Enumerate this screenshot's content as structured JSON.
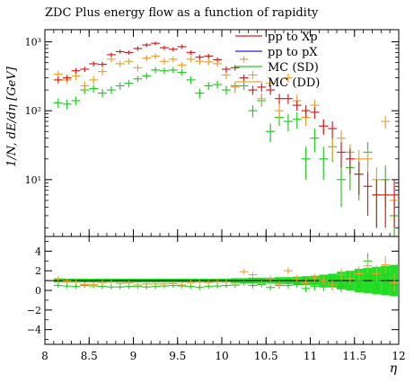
{
  "chart_data": {
    "type": "scatter",
    "title": "ZDC Plus energy flow as a function of rapidity",
    "xlabel": "η",
    "ylabel": "1/N, dE/dη [GeV]",
    "xlim": [
      8,
      12
    ],
    "main_panel": {
      "yscale": "log",
      "ylim": [
        1.5,
        1500
      ],
      "yticks": [
        {
          "value": 10,
          "label": "10¹"
        },
        {
          "value": 100,
          "label": "10²"
        },
        {
          "value": 1000,
          "label": "10³"
        }
      ]
    },
    "ratio_panel": {
      "yscale": "linear",
      "ylim": [
        -5.5,
        5.5
      ],
      "yticks": [
        {
          "value": -4,
          "label": "−4"
        },
        {
          "value": -2,
          "label": "−2"
        },
        {
          "value": 0,
          "label": "0"
        },
        {
          "value": 2,
          "label": "2"
        },
        {
          "value": 4,
          "label": "4"
        }
      ]
    },
    "xticks": [
      {
        "value": 8,
        "label": "8"
      },
      {
        "value": 8.5,
        "label": "8.5"
      },
      {
        "value": 9,
        "label": "9"
      },
      {
        "value": 9.5,
        "label": "9.5"
      },
      {
        "value": 10,
        "label": "10"
      },
      {
        "value": 10.5,
        "label": "10.5"
      },
      {
        "value": 11,
        "label": "11"
      },
      {
        "value": 11.5,
        "label": "11.5"
      },
      {
        "value": 12,
        "label": "12"
      }
    ],
    "legend_position": "top-right",
    "x": [
      8.15,
      8.25,
      8.35,
      8.45,
      8.55,
      8.65,
      8.75,
      8.85,
      8.95,
      9.05,
      9.15,
      9.25,
      9.35,
      9.45,
      9.55,
      9.65,
      9.75,
      9.85,
      9.95,
      10.05,
      10.15,
      10.25,
      10.35,
      10.45,
      10.55,
      10.65,
      10.75,
      10.85,
      10.95,
      11.05,
      11.15,
      11.25,
      11.35,
      11.45,
      11.55,
      11.65,
      11.75,
      11.85,
      11.95
    ],
    "series": [
      {
        "name": "pp to Xp",
        "color": "#d62020",
        "values": [
          280,
          300,
          380,
          400,
          480,
          470,
          650,
          720,
          700,
          800,
          900,
          950,
          820,
          780,
          850,
          700,
          600,
          620,
          550,
          400,
          420,
          300,
          200,
          220,
          200,
          150,
          150,
          120,
          100,
          95,
          60,
          55,
          25,
          20,
          12,
          8,
          6,
          6,
          6
        ],
        "errors": [
          30,
          30,
          35,
          35,
          40,
          40,
          50,
          50,
          50,
          60,
          60,
          60,
          60,
          55,
          60,
          55,
          50,
          50,
          45,
          40,
          40,
          35,
          30,
          30,
          30,
          25,
          25,
          20,
          20,
          18,
          15,
          15,
          10,
          8,
          6,
          5,
          4,
          4,
          4
        ]
      },
      {
        "name": "pp to pX",
        "color": "#2020d6",
        "values": [],
        "errors": []
      },
      {
        "name": "MC (SD)",
        "color": "#22cc22",
        "values": [
          130,
          125,
          140,
          200,
          210,
          180,
          200,
          230,
          250,
          290,
          320,
          390,
          380,
          390,
          360,
          280,
          180,
          230,
          240,
          200,
          230,
          230,
          100,
          140,
          50,
          80,
          70,
          75,
          20,
          40,
          20,
          30,
          10,
          15,
          12,
          25,
          6,
          10,
          3
        ],
        "errors": [
          20,
          20,
          20,
          25,
          25,
          25,
          25,
          30,
          30,
          30,
          35,
          40,
          40,
          40,
          40,
          35,
          30,
          30,
          30,
          30,
          30,
          30,
          20,
          25,
          15,
          20,
          20,
          20,
          10,
          15,
          10,
          12,
          6,
          8,
          7,
          10,
          4,
          6,
          2
        ]
      },
      {
        "name": "MC (DD)",
        "color": "#f0a030",
        "values": [
          340,
          280,
          320,
          230,
          280,
          370,
          560,
          480,
          520,
          420,
          580,
          620,
          520,
          560,
          460,
          560,
          520,
          510,
          480,
          330,
          220,
          560,
          330,
          150,
          250,
          100,
          300,
          140,
          80,
          120,
          60,
          30,
          40,
          25,
          20,
          20,
          10,
          70,
          5
        ],
        "errors": [
          40,
          35,
          40,
          35,
          40,
          45,
          55,
          50,
          55,
          50,
          60,
          60,
          55,
          55,
          50,
          55,
          55,
          55,
          50,
          45,
          40,
          60,
          45,
          30,
          40,
          25,
          45,
          30,
          20,
          25,
          15,
          10,
          12,
          8,
          7,
          7,
          5,
          15,
          3
        ]
      }
    ],
    "ratio": {
      "baseline": 1,
      "band": [
        0.2,
        0.2,
        0.2,
        0.2,
        0.2,
        0.2,
        0.2,
        0.2,
        0.2,
        0.2,
        0.2,
        0.2,
        0.2,
        0.2,
        0.2,
        0.2,
        0.2,
        0.2,
        0.2,
        0.2,
        0.25,
        0.25,
        0.3,
        0.3,
        0.3,
        0.35,
        0.35,
        0.4,
        0.45,
        0.5,
        0.6,
        0.7,
        0.9,
        1.0,
        1.2,
        1.3,
        1.4,
        1.5,
        1.6
      ],
      "MC (SD)": [
        0.5,
        0.45,
        0.4,
        0.5,
        0.45,
        0.4,
        0.35,
        0.35,
        0.4,
        0.4,
        0.35,
        0.4,
        0.45,
        0.5,
        0.45,
        0.4,
        0.3,
        0.4,
        0.45,
        0.5,
        0.55,
        0.75,
        0.5,
        0.6,
        0.3,
        0.5,
        0.5,
        0.6,
        0.2,
        0.4,
        0.35,
        0.5,
        0.4,
        0.8,
        1.0,
        3.0,
        1.0,
        1.6,
        0.5
      ],
      "MC (DD)": [
        1.2,
        0.95,
        0.85,
        0.6,
        0.6,
        0.8,
        0.85,
        0.7,
        0.75,
        0.55,
        0.65,
        0.65,
        0.65,
        0.7,
        0.55,
        0.8,
        0.85,
        0.8,
        0.9,
        0.85,
        0.5,
        1.9,
        1.6,
        0.7,
        1.2,
        0.65,
        2.0,
        1.2,
        0.8,
        1.3,
        1.0,
        0.55,
        1.6,
        1.2,
        1.7,
        2.5,
        1.7,
        2.6,
        0.8
      ]
    }
  }
}
